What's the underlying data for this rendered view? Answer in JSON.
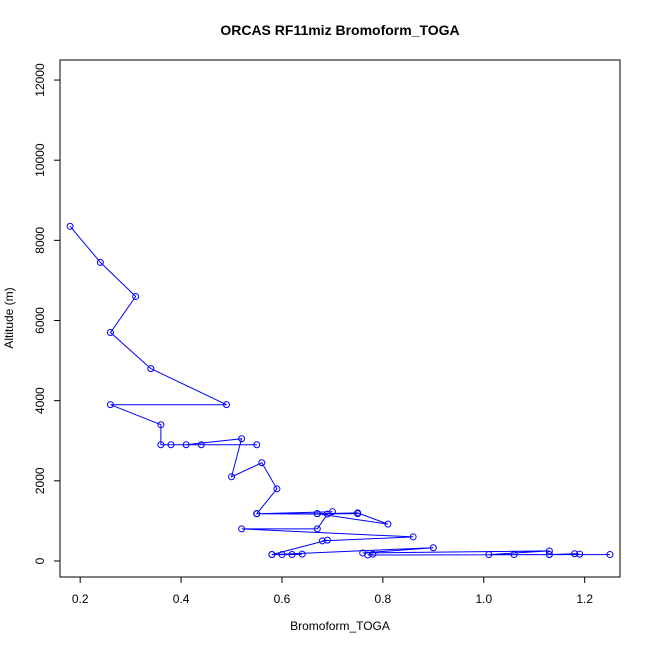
{
  "chart_data": {
    "type": "line",
    "title": "ORCAS RF11miz Bromoform_TOGA",
    "xlabel": "Bromoform_TOGA",
    "ylabel": "Altitude (m)",
    "xlim": [
      0.16,
      1.27
    ],
    "ylim": [
      -400,
      12500
    ],
    "xticks": [
      0.2,
      0.4,
      0.6,
      0.8,
      1.0,
      1.2
    ],
    "xtick_labels": [
      "0.2",
      "0.4",
      "0.6",
      "0.8",
      "1.0",
      "1.2"
    ],
    "yticks": [
      0,
      2000,
      4000,
      6000,
      8000,
      10000,
      12000
    ],
    "ytick_labels": [
      "0",
      "2000",
      "4000",
      "6000",
      "8000",
      "10000",
      "12000"
    ],
    "grid": false,
    "series": [
      {
        "color": "#0000ff",
        "marker": "open-circle",
        "x": [
          0.18,
          0.24,
          0.31,
          0.26,
          0.34,
          0.49,
          0.26,
          0.36,
          0.36,
          0.38,
          0.44,
          0.55,
          0.41,
          0.52,
          0.5,
          0.56,
          0.59,
          0.55,
          0.7,
          0.55,
          0.67,
          0.75,
          0.81,
          0.67,
          0.75,
          0.55,
          0.69,
          0.67,
          0.52,
          0.86,
          0.68,
          0.69,
          0.58,
          0.6,
          0.64,
          0.62,
          0.58,
          0.9,
          0.76,
          1.13,
          1.01,
          1.25,
          1.06,
          1.13,
          1.18,
          1.19,
          1.13,
          0.77,
          0.78
        ],
        "y": [
          8350,
          7450,
          6600,
          5700,
          4800,
          3900,
          3900,
          3400,
          2900,
          2900,
          2900,
          2900,
          2900,
          3050,
          2100,
          2450,
          1800,
          1180,
          1230,
          1180,
          1180,
          1200,
          920,
          1180,
          1180,
          1180,
          1170,
          800,
          800,
          600,
          500,
          520,
          160,
          160,
          170,
          160,
          160,
          330,
          200,
          250,
          160,
          160,
          160,
          160,
          180,
          170,
          160,
          150,
          170
        ]
      }
    ]
  }
}
